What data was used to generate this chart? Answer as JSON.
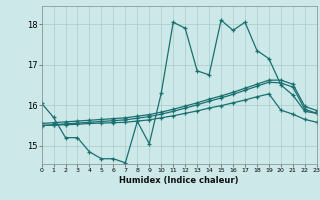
{
  "xlabel": "Humidex (Indice chaleur)",
  "bg_color": "#cce8e8",
  "grid_color": "#aacccc",
  "line_color": "#1a7070",
  "xlim": [
    0,
    23
  ],
  "ylim": [
    14.55,
    18.45
  ],
  "yticks": [
    15,
    16,
    17,
    18
  ],
  "xticks": [
    0,
    1,
    2,
    3,
    4,
    5,
    6,
    7,
    8,
    9,
    10,
    11,
    12,
    13,
    14,
    15,
    16,
    17,
    18,
    19,
    20,
    21,
    22,
    23
  ],
  "series1_x": [
    0,
    1,
    2,
    3,
    4,
    5,
    6,
    7,
    8,
    9,
    10,
    11,
    12,
    13,
    14,
    15,
    16,
    17,
    18,
    19,
    20,
    21,
    22,
    23
  ],
  "series1_y": [
    16.05,
    15.7,
    15.2,
    15.2,
    14.85,
    14.68,
    14.68,
    14.58,
    15.6,
    15.05,
    16.3,
    18.05,
    17.9,
    16.85,
    16.75,
    18.1,
    17.85,
    18.05,
    17.35,
    17.15,
    16.5,
    16.25,
    15.85,
    15.8
  ],
  "series2_x": [
    0,
    1,
    2,
    3,
    4,
    5,
    6,
    7,
    8,
    9,
    10,
    11,
    12,
    13,
    14,
    15,
    16,
    17,
    18,
    19,
    20,
    21,
    22,
    23
  ],
  "series2_y": [
    15.5,
    15.52,
    15.54,
    15.56,
    15.58,
    15.6,
    15.62,
    15.64,
    15.68,
    15.72,
    15.78,
    15.85,
    15.93,
    16.01,
    16.1,
    16.18,
    16.27,
    16.37,
    16.47,
    16.57,
    16.55,
    16.45,
    15.9,
    15.8
  ],
  "series3_x": [
    0,
    1,
    2,
    3,
    4,
    5,
    6,
    7,
    8,
    9,
    10,
    11,
    12,
    13,
    14,
    15,
    16,
    17,
    18,
    19,
    20,
    21,
    22,
    23
  ],
  "series3_y": [
    15.55,
    15.57,
    15.59,
    15.61,
    15.63,
    15.65,
    15.67,
    15.69,
    15.73,
    15.77,
    15.83,
    15.9,
    15.98,
    16.06,
    16.15,
    16.23,
    16.32,
    16.42,
    16.52,
    16.62,
    16.62,
    16.52,
    15.97,
    15.87
  ],
  "series4_x": [
    0,
    1,
    2,
    3,
    4,
    5,
    6,
    7,
    8,
    9,
    10,
    11,
    12,
    13,
    14,
    15,
    16,
    17,
    18,
    19,
    20,
    21,
    22,
    23
  ],
  "series4_y": [
    15.5,
    15.51,
    15.52,
    15.53,
    15.55,
    15.56,
    15.57,
    15.58,
    15.61,
    15.64,
    15.69,
    15.74,
    15.8,
    15.86,
    15.93,
    15.99,
    16.06,
    16.13,
    16.21,
    16.28,
    15.88,
    15.78,
    15.65,
    15.58
  ]
}
